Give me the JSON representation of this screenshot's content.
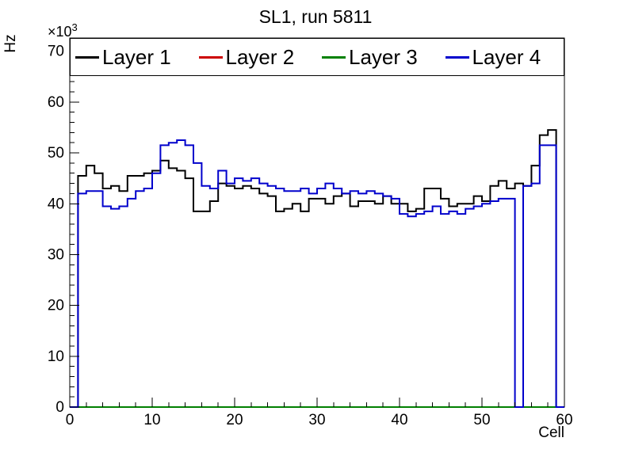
{
  "chart_data": {
    "type": "line",
    "subtype": "step-histogram",
    "title": "SL1, run 5811",
    "xlabel": "Cell",
    "ylabel": "Hz",
    "y_multiplier": {
      "base": "×10",
      "exponent": "3"
    },
    "value_unit": "1000 Hz",
    "xlim": [
      0,
      60
    ],
    "ylim": [
      0,
      72.6
    ],
    "x_ticks": [
      0,
      10,
      20,
      30,
      40,
      50,
      60
    ],
    "y_ticks": [
      0,
      10,
      20,
      30,
      40,
      50,
      60,
      70
    ],
    "x_minor_step": 2,
    "y_minor_step": 2,
    "bin_width": 1,
    "grid": false,
    "legend_position": "top-inside-horizontal",
    "frame_color": "#000000",
    "background_color": "#ffffff",
    "series": [
      {
        "name": "Layer 1",
        "color": "#000000",
        "values": [
          0,
          45.5,
          47.5,
          46,
          43,
          43.5,
          42.5,
          45.5,
          45.5,
          46,
          46.5,
          48.5,
          47,
          46.5,
          45,
          38.5,
          38.5,
          40.5,
          44,
          43.5,
          43,
          43.5,
          43,
          42,
          41.5,
          38.5,
          39,
          40,
          38.5,
          41,
          41,
          40,
          41.5,
          42,
          39.5,
          40.5,
          40.5,
          40,
          41.5,
          40,
          40,
          38.5,
          39,
          43,
          43,
          41,
          39.5,
          40,
          40,
          41.5,
          40.5,
          43.5,
          44.5,
          43,
          44,
          43.5,
          47.5,
          53.5,
          54.5,
          0
        ]
      },
      {
        "name": "Layer 2",
        "color": "#cc0000",
        "values": [
          0,
          0,
          0,
          0,
          0,
          0,
          0,
          0,
          0,
          0,
          0,
          0,
          0,
          0,
          0,
          0,
          0,
          0,
          0,
          0,
          0,
          0,
          0,
          0,
          0,
          0,
          0,
          0,
          0,
          0,
          0,
          0,
          0,
          0,
          0,
          0,
          0,
          0,
          0,
          0,
          0,
          0,
          0,
          0,
          0,
          0,
          0,
          0,
          0,
          0,
          0,
          0,
          0,
          0,
          0,
          0,
          0,
          0,
          0,
          0
        ]
      },
      {
        "name": "Layer 3",
        "color": "#008000",
        "values": [
          0,
          0,
          0,
          0,
          0,
          0,
          0,
          0,
          0,
          0,
          0,
          0,
          0,
          0,
          0,
          0,
          0,
          0,
          0,
          0,
          0,
          0,
          0,
          0,
          0,
          0,
          0,
          0,
          0,
          0,
          0,
          0,
          0,
          0,
          0,
          0,
          0,
          0,
          0,
          0,
          0,
          0,
          0,
          0,
          0,
          0,
          0,
          0,
          0,
          0,
          0,
          0,
          0,
          0,
          0,
          0,
          0,
          0,
          0,
          0
        ]
      },
      {
        "name": "Layer 4",
        "color": "#0000cc",
        "values": [
          0,
          42,
          42.5,
          42.5,
          39.5,
          39,
          39.5,
          41,
          42.5,
          43,
          46,
          51.5,
          52,
          52.5,
          51.5,
          48,
          43.5,
          43,
          46.5,
          44,
          45,
          44.5,
          45,
          44,
          43.5,
          43,
          42.5,
          42.5,
          43,
          42,
          43,
          44,
          43,
          42,
          42.5,
          42,
          42.5,
          42,
          41.5,
          41,
          38,
          37.5,
          38,
          38.5,
          39.5,
          38,
          38.5,
          38,
          39,
          39.5,
          40,
          40.5,
          41,
          41,
          0,
          43.5,
          44,
          51.5,
          51.5,
          0
        ]
      }
    ]
  }
}
